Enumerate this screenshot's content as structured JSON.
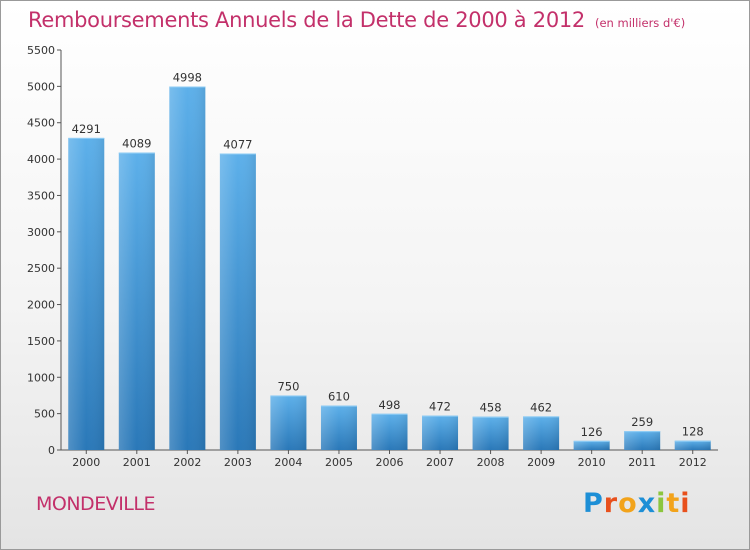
{
  "header": {
    "title": "Remboursements Annuels de la Dette de 2000 à 2012",
    "subtitle": "(en milliers d'€)"
  },
  "footer": {
    "city": "MONDEVILLE",
    "logo_text": "Proxiti",
    "logo_colors": [
      "#1d8fd6",
      "#e8501c",
      "#f2a31b",
      "#1d8fd6",
      "#8cc63e",
      "#f2a31b",
      "#e8501c"
    ]
  },
  "colors": {
    "bar": "#3a8fd0",
    "bar_light": "#5db0ea",
    "bar_dark": "#2a78b8",
    "accent": "#c3306a"
  },
  "chart_data": {
    "type": "bar",
    "title": "Remboursements Annuels de la Dette de 2000 à 2012",
    "subtitle": "(en milliers d'€)",
    "categories": [
      "2000",
      "2001",
      "2002",
      "2003",
      "2004",
      "2005",
      "2006",
      "2007",
      "2008",
      "2009",
      "2010",
      "2011",
      "2012"
    ],
    "values": [
      4291,
      4089,
      4998,
      4077,
      750,
      610,
      498,
      472,
      458,
      462,
      126,
      259,
      128
    ],
    "ylim": [
      0,
      5500
    ],
    "yticks": [
      0,
      500,
      1000,
      1500,
      2000,
      2500,
      3000,
      3500,
      4000,
      4500,
      5000,
      5500
    ],
    "grid": false,
    "data_labels": true
  }
}
